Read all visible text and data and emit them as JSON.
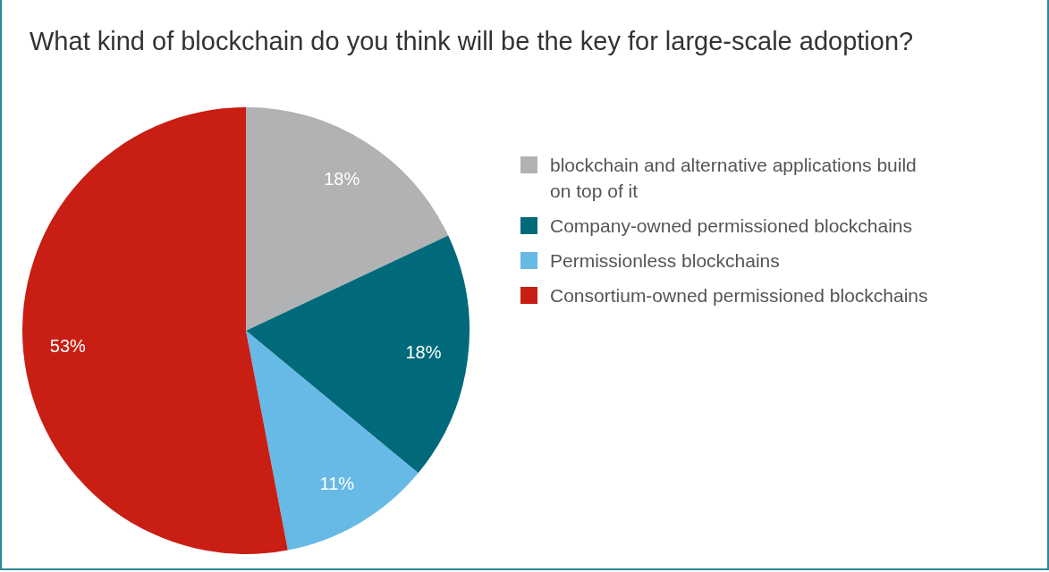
{
  "chart_data": {
    "type": "pie",
    "title": "What kind of blockchain do you think will be the key for large-scale adoption?",
    "categories": [
      "blockchain and alternative applications build on top of it",
      "Company-owned permissioned blockchains",
      "Permissionless blockchains",
      "Consortium-owned permissioned blockchains"
    ],
    "values": [
      18,
      18,
      11,
      53
    ],
    "colors": [
      "#b1b2b4",
      "#006a7b",
      "#67b9e6",
      "#c81e14"
    ],
    "value_labels": [
      "18%",
      "18%",
      "11%",
      "53%"
    ],
    "legend": "right"
  }
}
